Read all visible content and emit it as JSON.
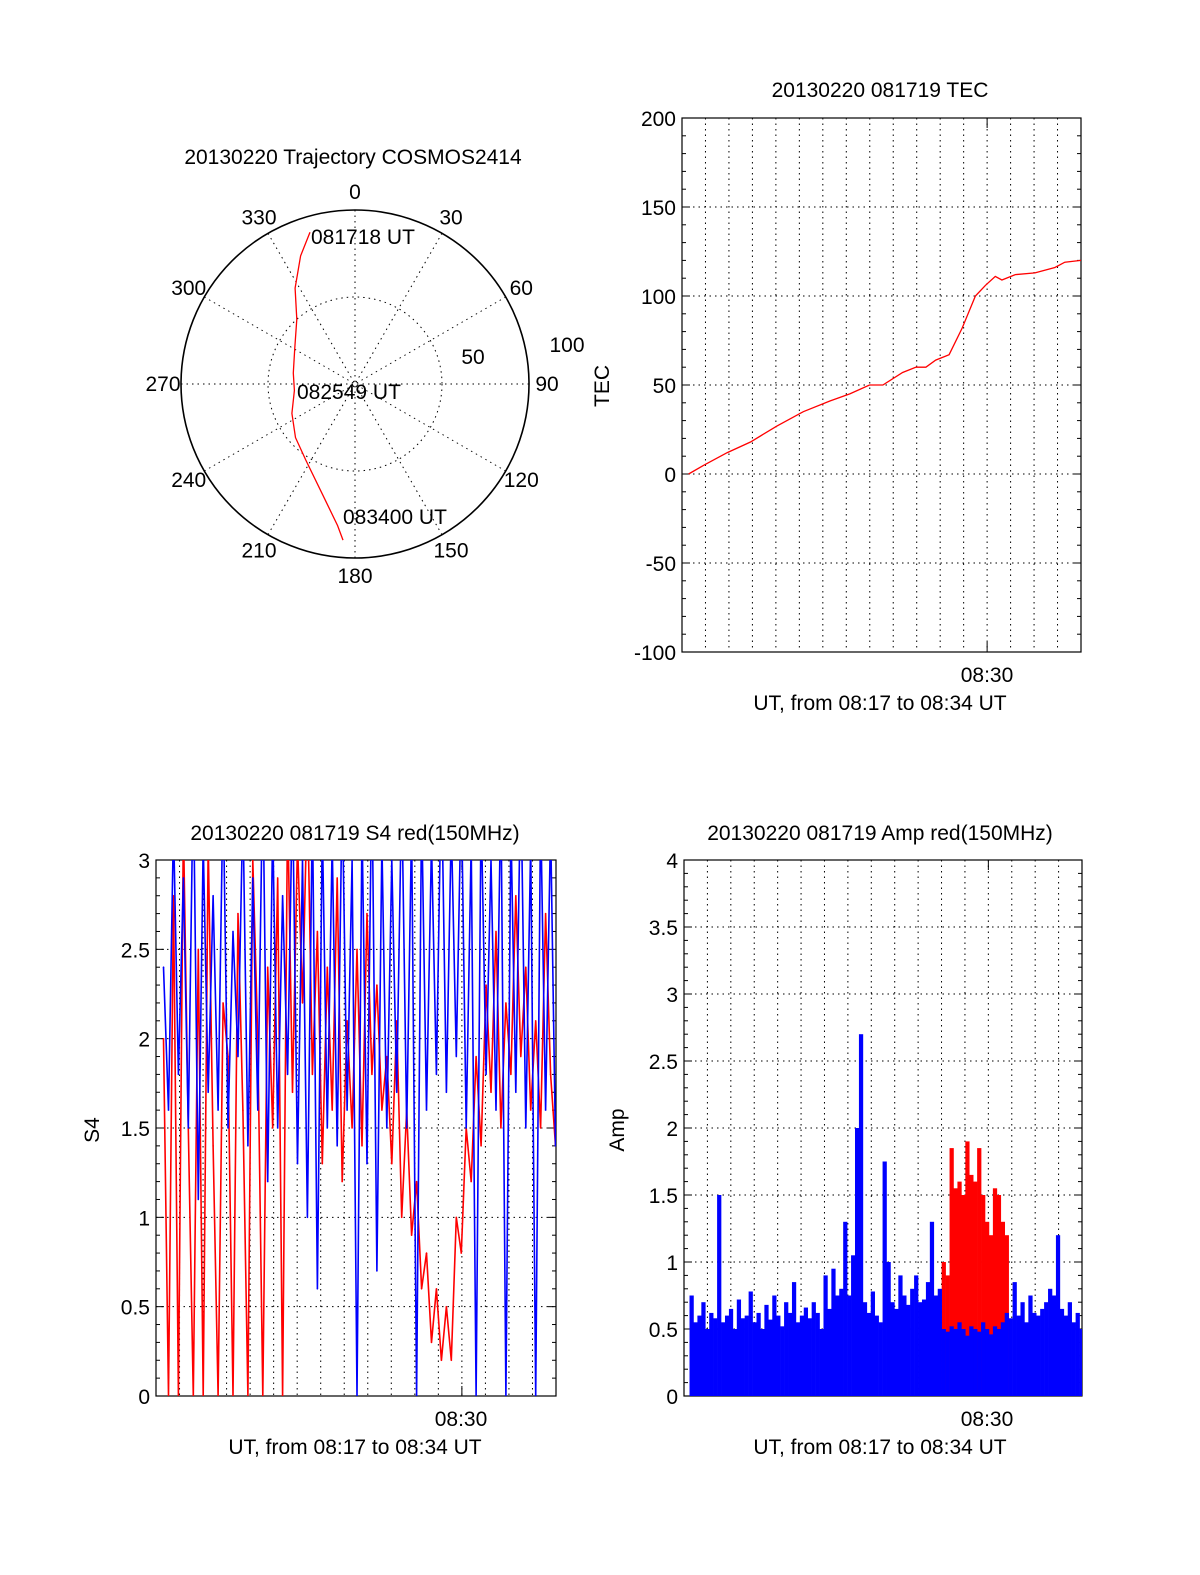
{
  "chart_data": [
    {
      "type": "polar",
      "title": "20130220 Trajectory COSMOS2414",
      "angle_labels": [
        "0",
        "30",
        "60",
        "90",
        "120",
        "150",
        "180",
        "210",
        "240",
        "270",
        "300",
        "330"
      ],
      "radial_labels": [
        "50",
        "100"
      ],
      "rlim": [
        0,
        100
      ],
      "time_labels": [
        "081718 UT",
        "082549 UT",
        "083400 UT"
      ],
      "trajectory": {
        "color": "#ff0000",
        "azimuth": [
          343.5,
          337,
          328,
          318,
          300,
          280,
          264,
          245,
          228,
          213,
          195,
          187,
          184.4
        ],
        "r": [
          91,
          80,
          65,
          50,
          40,
          36,
          35,
          40,
          46,
          52,
          68,
          82,
          90
        ]
      }
    },
    {
      "type": "line",
      "title": "20130220 081719 TEC",
      "xlabel": "UT, from 08:17 to 08:34 UT",
      "ylabel": "TEC",
      "xlim": [
        17,
        34
      ],
      "ylim": [
        -100,
        200
      ],
      "yticks": [
        "-100",
        "-50",
        "0",
        "50",
        "100",
        "150",
        "200"
      ],
      "xtick_label": "08:30",
      "grid": true,
      "series": [
        {
          "name": "TEC",
          "color": "#ff0000",
          "x": [
            17.28,
            17.94,
            18.93,
            19.92,
            21.05,
            22.17,
            23.3,
            24.15,
            24.99,
            25.56,
            26.4,
            26.97,
            27.39,
            27.81,
            28.38,
            28.94,
            29.5,
            29.93,
            30.35,
            30.63,
            31.2,
            32.04,
            32.89,
            33.31,
            34.0
          ],
          "y": [
            0,
            5,
            12,
            18,
            27,
            35,
            41,
            45,
            50,
            50,
            57,
            60,
            60,
            64,
            67,
            82,
            100,
            106,
            111,
            109,
            112,
            113,
            116,
            119,
            120
          ]
        }
      ]
    },
    {
      "type": "line",
      "title": "20130220 081719 S4 red(150MHz)",
      "xlabel": "UT, from 08:17 to 08:34 UT",
      "ylabel": "S4",
      "xlim": [
        17,
        34
      ],
      "ylim": [
        0,
        3
      ],
      "yticks": [
        "0",
        "0.5",
        "1",
        "1.5",
        "2",
        "2.5",
        "3"
      ],
      "xtick_label": "08:30",
      "grid": true,
      "x_start": 17.32,
      "x_end": 33.98,
      "series": [
        {
          "name": "red",
          "color": "#ff0000",
          "y": [
            2.0,
            0,
            2.8,
            0,
            3.2,
            1.5,
            0,
            2.5,
            0,
            3.1,
            1.4,
            0,
            2.2,
            1.9,
            0,
            2.7,
            1.6,
            0,
            3.0,
            2.0,
            0,
            2.4,
            1.5,
            2.9,
            0,
            3.3,
            1.7,
            3.1,
            2.2,
            3.4,
            1.8,
            2.6,
            1.3,
            2.4,
            1.6,
            2.9,
            1.2,
            2.1,
            1.5,
            2.5,
            1.4,
            2.7,
            1.8,
            2.3,
            1.6,
            1.9,
            1.3,
            2.1,
            1.0,
            1.6,
            0.9,
            1.2,
            0.6,
            0.8,
            0.3,
            0.6,
            0.2,
            0.5,
            0.2,
            1.0,
            0.8,
            1.5,
            1.2,
            1.9,
            1.4,
            2.3,
            1.7,
            2.6,
            1.5,
            2.2,
            1.8,
            2.8,
            1.9,
            2.4,
            1.6,
            2.1,
            1.5,
            2.7,
            1.8,
            1.4
          ]
        },
        {
          "name": "blue",
          "color": "#0000ff",
          "y": [
            2.4,
            1.6,
            3.2,
            1.8,
            2.9,
            1.5,
            3.5,
            1.1,
            3.1,
            1.7,
            2.8,
            1.6,
            3.4,
            1.5,
            2.6,
            1.9,
            3.3,
            1.4,
            2.9,
            1.6,
            3.5,
            1.2,
            3.2,
            1.5,
            2.8,
            1.8,
            3.4,
            1.3,
            3.0,
            1.0,
            3.3,
            0.6,
            3.2,
            1.5,
            3.1,
            1.4,
            3.4,
            1.6,
            3.0,
            0.0,
            3.2,
            1.3,
            3.5,
            0.7,
            3.1,
            1.5,
            3.0,
            1.7,
            3.4,
            1.5,
            3.2,
            0.0,
            3.3,
            1.6,
            3.1,
            1.8,
            3.5,
            1.7,
            3.2,
            1.9,
            3.4,
            1.5,
            3.1,
            0.0,
            3.3,
            1.8,
            3.0,
            1.6,
            3.4,
            0.0,
            3.2,
            1.7,
            3.5,
            1.5,
            3.1,
            0.0,
            3.3,
            1.6,
            3.2,
            1.4
          ]
        }
      ]
    },
    {
      "type": "bar",
      "title": "20130220 081719 Amp red(150MHz)",
      "xlabel": "UT, from 08:17 to 08:34 UT",
      "ylabel": "Amp",
      "xlim": [
        17,
        34
      ],
      "ylim": [
        0,
        4
      ],
      "yticks": [
        "0",
        "0.5",
        "1",
        "1.5",
        "2",
        "2.5",
        "3",
        "3.5",
        "4"
      ],
      "xtick_label": "08:30",
      "grid": true,
      "x_start": 17.32,
      "x_end": 33.98,
      "series": [
        {
          "name": "red",
          "color": "#ff0000",
          "start_index": 64,
          "y": [
            1.0,
            0.9,
            1.85,
            1.55,
            1.6,
            1.5,
            1.9,
            1.65,
            1.6,
            1.85,
            1.5,
            1.3,
            1.2,
            1.55,
            1.5,
            1.3,
            1.2
          ]
        },
        {
          "name": "blue",
          "color": "#0000ff",
          "start_index": 0,
          "y": [
            0.75,
            0.55,
            0.6,
            0.7,
            0.5,
            0.62,
            0.58,
            1.5,
            0.55,
            0.6,
            0.65,
            0.5,
            0.72,
            0.58,
            0.6,
            0.78,
            0.55,
            0.62,
            0.5,
            0.68,
            0.57,
            0.75,
            0.6,
            0.52,
            0.7,
            0.62,
            0.85,
            0.55,
            0.6,
            0.66,
            0.58,
            0.7,
            0.62,
            0.5,
            0.9,
            0.65,
            0.95,
            0.75,
            0.8,
            1.3,
            0.75,
            1.05,
            2.0,
            2.7,
            0.7,
            0.62,
            0.78,
            0.6,
            0.55,
            1.75,
            1.0,
            0.7,
            0.65,
            0.9,
            0.75,
            0.68,
            0.8,
            0.9,
            0.7,
            0.72,
            0.85,
            1.3,
            0.75,
            0.8,
            0.5,
            0.48,
            0.52,
            0.5,
            0.55,
            0.5,
            0.45,
            0.52,
            0.5,
            0.48,
            0.55,
            0.5,
            0.46,
            0.52,
            0.5,
            0.55,
            0.62,
            0.58,
            0.85,
            0.6,
            0.7,
            0.55,
            0.75,
            0.62,
            0.6,
            0.65,
            0.7,
            0.8,
            0.75,
            1.2,
            0.65,
            0.6,
            0.7,
            0.55,
            0.62,
            0.5
          ]
        }
      ]
    }
  ]
}
